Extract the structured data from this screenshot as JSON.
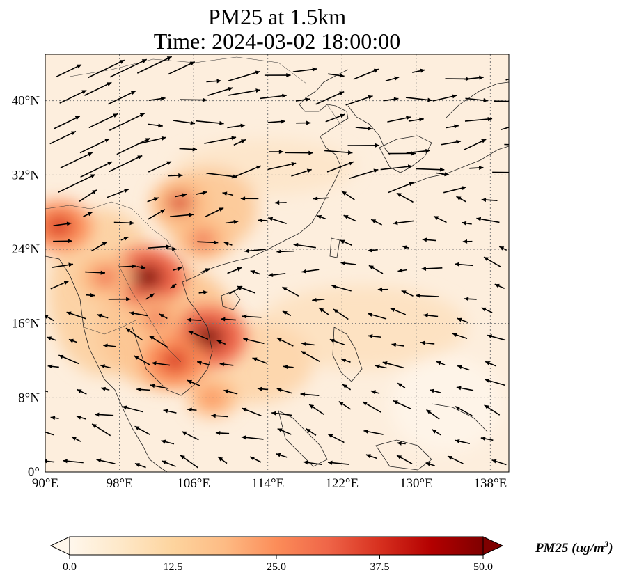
{
  "title": {
    "line1": "PM25 at 1.5km",
    "line2": "Time: 2024-03-02 18:00:00"
  },
  "map": {
    "projection": "PlateCarree",
    "lon_range": [
      90,
      140
    ],
    "lat_range": [
      0,
      45
    ],
    "lon_ticks": [
      90,
      98,
      106,
      114,
      122,
      130,
      138
    ],
    "lat_ticks": [
      0,
      8,
      16,
      24,
      32,
      40
    ],
    "lon_tick_labels": [
      "90°E",
      "98°E",
      "106°E",
      "114°E",
      "122°E",
      "130°E",
      "138°E"
    ],
    "lat_tick_labels": [
      "0°",
      "8°N",
      "16°N",
      "24°N",
      "32°N",
      "40°N"
    ],
    "gridlines": "dotted",
    "field": "PM25 concentration at 1.5km with wind vectors",
    "hotspots": [
      {
        "lon": 107.5,
        "lat": 14.5,
        "level": 50
      },
      {
        "lon": 101.0,
        "lat": 21.0,
        "level": 48
      },
      {
        "lon": 104.0,
        "lat": 12.0,
        "level": 40
      },
      {
        "lon": 104.5,
        "lat": 29.0,
        "level": 35
      },
      {
        "lon": 107.0,
        "lat": 25.0,
        "level": 30
      },
      {
        "lon": 91.5,
        "lat": 26.5,
        "level": 40
      },
      {
        "lon": 96.5,
        "lat": 21.0,
        "level": 32
      },
      {
        "lon": 108.0,
        "lat": 8.0,
        "level": 28
      },
      {
        "lon": 102.0,
        "lat": 16.5,
        "level": 30
      }
    ]
  },
  "colorbar": {
    "label": "PM25 (ug/m",
    "label_sup": "3",
    "label_close": ")",
    "min": 0.0,
    "max": 50.0,
    "extend": "both",
    "ticks": [
      "0.0",
      "12.5",
      "25.0",
      "37.5",
      "50.0"
    ],
    "colormap": "OrRd",
    "stops": [
      "#fff7ec",
      "#fee8c8",
      "#fdd49e",
      "#fdbb84",
      "#fc8d59",
      "#ef6548",
      "#d7301f",
      "#b30000",
      "#7f0000"
    ]
  }
}
